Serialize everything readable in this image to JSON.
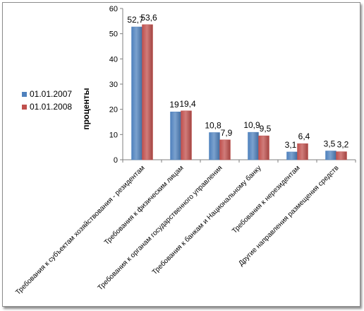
{
  "chart_data": {
    "type": "bar",
    "title": "",
    "xlabel": "",
    "ylabel": "проценты",
    "ylim": [
      0,
      60
    ],
    "yticks": [
      "0",
      "10",
      "20",
      "30",
      "40",
      "50",
      "60"
    ],
    "categories": [
      "Требования к субъектам хозяйствования - резидентам",
      "Требования к физическим лицам",
      "Требования к органам государственного управления",
      "Требования к банкам и Национальному банку",
      "Требования к нерезидентам",
      "Другие направления размещения средств"
    ],
    "series": [
      {
        "name": "01.01.2007",
        "color": "#4f81bd",
        "values": [
          52.7,
          19,
          10.8,
          10.9,
          3.1,
          3.5
        ],
        "labels": [
          "52,7",
          "19",
          "10,8",
          "10,9",
          "3,1",
          "3,5"
        ]
      },
      {
        "name": "01.01.2008",
        "color": "#c0504d",
        "values": [
          53.6,
          19.4,
          7.9,
          9.5,
          6.4,
          3.2
        ],
        "labels": [
          "53,6",
          "19,4",
          "7,9",
          "9,5",
          "6,4",
          "3,2"
        ]
      }
    ],
    "grid": false,
    "legend_position": "left"
  }
}
